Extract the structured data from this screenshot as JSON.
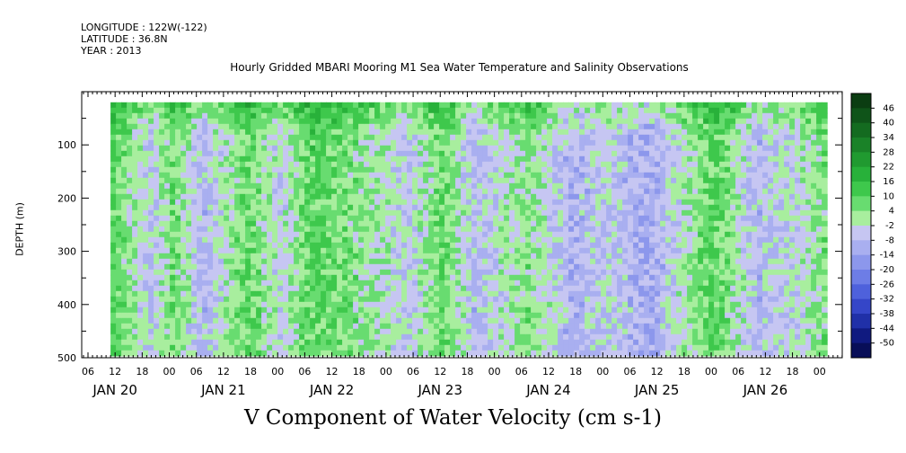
{
  "header": {
    "longitude": "LONGITUDE : 122W(-122)",
    "latitude": "LATITUDE : 36.8N",
    "year": "YEAR : 2013"
  },
  "chart_data": {
    "type": "heatmap",
    "title": "Hourly Gridded MBARI Mooring M1 Sea Water Temperature and Salinity Observations",
    "xlabel": "V Component of Water Velocity (cm s-1)",
    "ylabel": "DEPTH (m)",
    "ylim": [
      500,
      0
    ],
    "yticks": [
      100,
      200,
      300,
      400,
      500
    ],
    "hour_ticks": [
      "06",
      "12",
      "18",
      "00",
      "06",
      "12",
      "18",
      "00",
      "06",
      "12",
      "18",
      "00",
      "06",
      "12",
      "18",
      "00",
      "06",
      "12",
      "18",
      "00",
      "06",
      "12",
      "18",
      "00",
      "06",
      "12",
      "18",
      "00"
    ],
    "day_labels": [
      "JAN 20",
      "JAN 21",
      "JAN 22",
      "JAN 23",
      "JAN 24",
      "JAN 25",
      "JAN 26"
    ],
    "data_extent": {
      "start": "JAN 20 11:00",
      "end": "JAN 27 01:00",
      "depth_min": 20,
      "depth_max": 490
    },
    "colorbar": {
      "levels": [
        46,
        40,
        34,
        28,
        22,
        16,
        10,
        4,
        -2,
        -8,
        -14,
        -20,
        -26,
        -32,
        -38,
        -44,
        -50
      ],
      "colors": [
        "#0b3d12",
        "#0f5419",
        "#146b20",
        "#1a8228",
        "#209a30",
        "#28b13a",
        "#3ec84c",
        "#68dc70",
        "#a8ee9e",
        "#c6c6f2",
        "#a9aff0",
        "#8c97ec",
        "#6d7de6",
        "#4e61dc",
        "#3546c8",
        "#2030a8",
        "#101a80",
        "#080e58"
      ]
    },
    "bands": [
      {
        "t": 0,
        "v": 4
      },
      {
        "t": 0.4,
        "v": 12
      },
      {
        "t": 0.8,
        "v": -6
      },
      {
        "t": 1.0,
        "v": 6
      },
      {
        "t": 1.3,
        "v": -8
      },
      {
        "t": 1.7,
        "v": 8
      },
      {
        "t": 2.0,
        "v": -4
      },
      {
        "t": 2.3,
        "v": 10
      },
      {
        "t": 2.8,
        "v": 2
      },
      {
        "t": 3.2,
        "v": -6
      },
      {
        "t": 3.5,
        "v": 8
      },
      {
        "t": 3.8,
        "v": -8
      },
      {
        "t": 4.3,
        "v": 4
      },
      {
        "t": 4.7,
        "v": -10
      },
      {
        "t": 5.0,
        "v": -4
      },
      {
        "t": 5.4,
        "v": -12
      },
      {
        "t": 5.8,
        "v": 2
      },
      {
        "t": 6.0,
        "v": 10
      },
      {
        "t": 6.4,
        "v": -8
      },
      {
        "t": 6.8,
        "v": -2
      },
      {
        "t": 7.0,
        "v": 4
      }
    ],
    "surface_anomaly": 12
  }
}
